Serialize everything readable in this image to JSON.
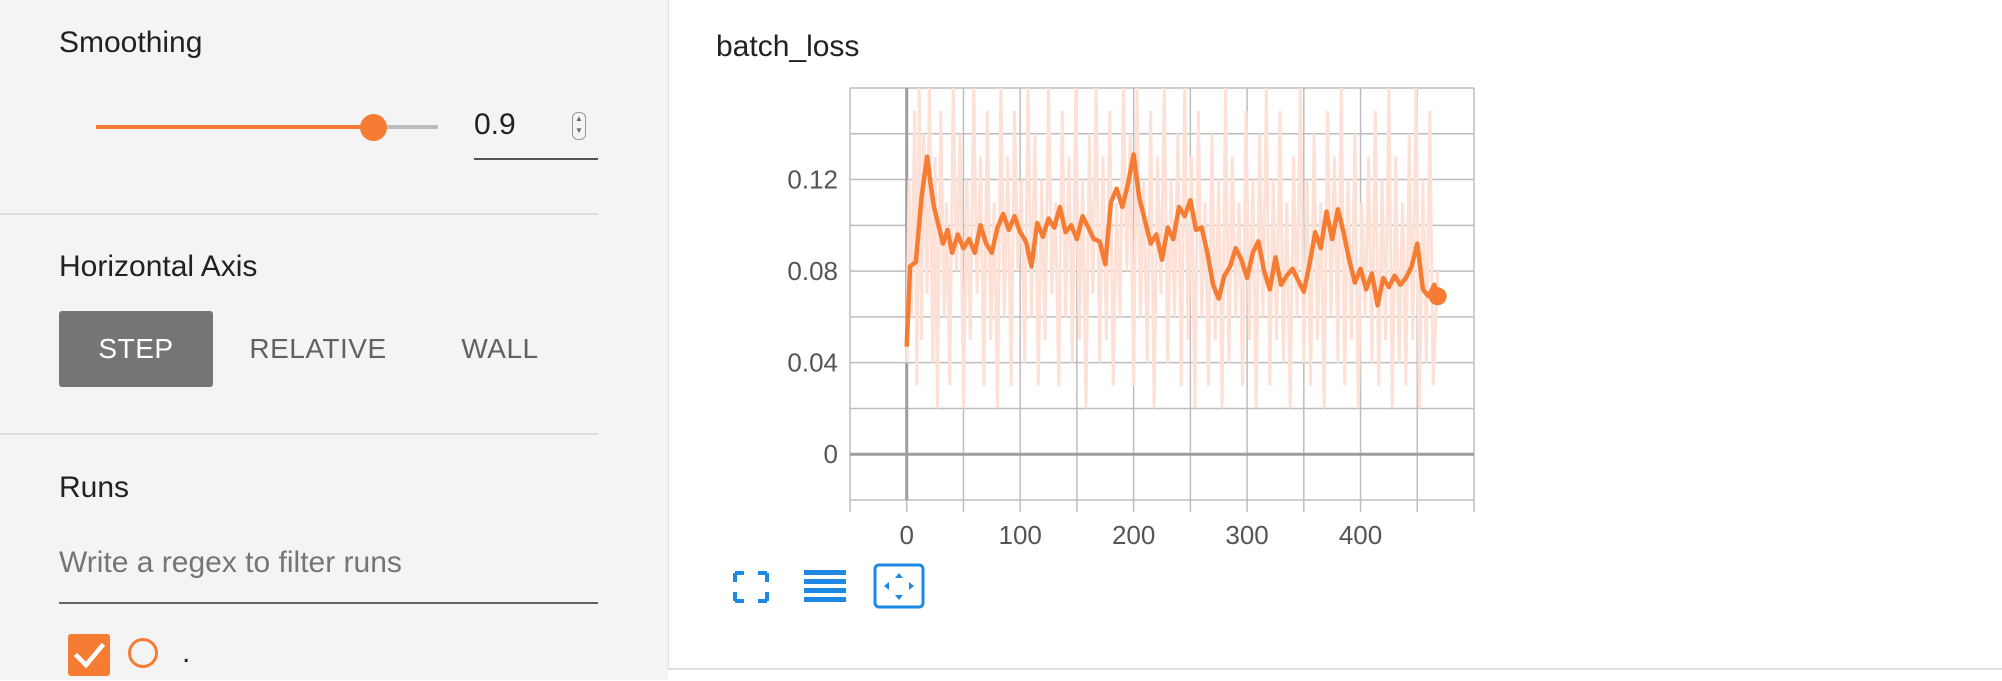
{
  "sidebar": {
    "smoothing": {
      "title": "Smoothing",
      "value": "0.9",
      "level": 0.9
    },
    "horizontal_axis": {
      "title": "Horizontal Axis",
      "options": [
        "STEP",
        "RELATIVE",
        "WALL"
      ],
      "selected": "STEP"
    },
    "runs": {
      "title": "Runs",
      "filter_placeholder": "Write a regex to filter runs",
      "items": [
        {
          "name": ".",
          "checked": true,
          "color": "#f57c32"
        }
      ]
    }
  },
  "card": {
    "title": "batch_loss",
    "controls": [
      "expand-icon",
      "data-selection-icon",
      "fit-domain-icon"
    ]
  },
  "colors": {
    "accent": "#f57c32",
    "raw_line": "#fde0d6",
    "smoothed_line": "#f57c32",
    "icon_blue": "#1e88e5"
  },
  "chart_data": {
    "type": "line",
    "title": "",
    "xlabel": "",
    "ylabel": "",
    "x_ticks": [
      0,
      100,
      200,
      300,
      400
    ],
    "y_ticks": [
      0,
      0.04,
      0.08,
      0.12
    ],
    "xlim": [
      -50,
      500
    ],
    "ylim": [
      -0.02,
      0.16
    ],
    "grid": true,
    "series": [
      {
        "role": "smoothed",
        "x": [
          0,
          3,
          8,
          13,
          18,
          21,
          24,
          28,
          32,
          36,
          40,
          45,
          50,
          55,
          60,
          65,
          70,
          75,
          80,
          85,
          90,
          95,
          100,
          105,
          110,
          115,
          120,
          125,
          130,
          135,
          140,
          145,
          150,
          155,
          160,
          165,
          170,
          175,
          180,
          185,
          190,
          195,
          200,
          205,
          210,
          215,
          220,
          225,
          230,
          235,
          240,
          245,
          250,
          255,
          260,
          265,
          270,
          275,
          280,
          285,
          290,
          295,
          300,
          305,
          310,
          315,
          320,
          325,
          330,
          335,
          340,
          345,
          350,
          355,
          360,
          365,
          370,
          375,
          380,
          385,
          390,
          395,
          400,
          405,
          410,
          415,
          420,
          425,
          430,
          435,
          440,
          445,
          450,
          455,
          460,
          465,
          468
        ],
        "y": [
          0.047,
          0.082,
          0.084,
          0.112,
          0.13,
          0.118,
          0.108,
          0.1,
          0.092,
          0.098,
          0.088,
          0.096,
          0.09,
          0.094,
          0.088,
          0.1,
          0.092,
          0.088,
          0.099,
          0.105,
          0.098,
          0.104,
          0.097,
          0.093,
          0.082,
          0.101,
          0.095,
          0.103,
          0.099,
          0.108,
          0.097,
          0.1,
          0.094,
          0.104,
          0.099,
          0.094,
          0.093,
          0.083,
          0.11,
          0.116,
          0.108,
          0.118,
          0.131,
          0.112,
          0.102,
          0.092,
          0.096,
          0.085,
          0.099,
          0.094,
          0.108,
          0.104,
          0.111,
          0.098,
          0.099,
          0.088,
          0.074,
          0.068,
          0.078,
          0.082,
          0.09,
          0.085,
          0.077,
          0.088,
          0.093,
          0.08,
          0.072,
          0.086,
          0.074,
          0.078,
          0.081,
          0.076,
          0.071,
          0.083,
          0.097,
          0.09,
          0.106,
          0.094,
          0.107,
          0.097,
          0.085,
          0.075,
          0.081,
          0.072,
          0.079,
          0.065,
          0.077,
          0.073,
          0.078,
          0.074,
          0.077,
          0.082,
          0.092,
          0.072,
          0.069,
          0.074,
          0.069
        ]
      },
      {
        "role": "raw",
        "x": [
          0,
          2,
          4,
          7,
          9,
          11,
          13,
          15,
          18,
          20,
          23,
          25,
          27,
          30,
          33,
          35,
          38,
          41,
          44,
          47,
          50,
          53,
          56,
          59,
          62,
          65,
          68,
          71,
          74,
          77,
          80,
          83,
          86,
          89,
          92,
          95,
          98,
          101,
          104,
          107,
          110,
          113,
          116,
          119,
          122,
          125,
          128,
          131,
          134,
          137,
          140,
          143,
          146,
          149,
          152,
          155,
          158,
          161,
          164,
          167,
          170,
          173,
          176,
          179,
          182,
          185,
          188,
          191,
          194,
          197,
          200,
          203,
          206,
          209,
          212,
          215,
          218,
          221,
          224,
          227,
          230,
          233,
          236,
          239,
          242,
          245,
          248,
          251,
          254,
          257,
          260,
          263,
          266,
          269,
          272,
          275,
          278,
          281,
          284,
          287,
          290,
          293,
          296,
          299,
          302,
          305,
          308,
          311,
          314,
          317,
          320,
          323,
          326,
          329,
          332,
          335,
          338,
          341,
          344,
          347,
          350,
          353,
          356,
          359,
          362,
          365,
          368,
          371,
          374,
          377,
          380,
          383,
          386,
          389,
          392,
          395,
          398,
          401,
          404,
          407,
          410,
          413,
          416,
          419,
          422,
          425,
          428,
          431,
          434,
          437,
          440,
          443,
          446,
          449,
          452,
          455,
          458,
          461,
          464,
          468
        ],
        "y": [
          0.04,
          0.12,
          0.06,
          0.15,
          0.03,
          0.16,
          0.05,
          0.14,
          0.07,
          0.16,
          0.04,
          0.13,
          0.02,
          0.15,
          0.06,
          0.11,
          0.03,
          0.16,
          0.08,
          0.14,
          0.02,
          0.12,
          0.05,
          0.16,
          0.07,
          0.13,
          0.03,
          0.15,
          0.05,
          0.11,
          0.02,
          0.16,
          0.06,
          0.13,
          0.03,
          0.15,
          0.08,
          0.12,
          0.04,
          0.16,
          0.06,
          0.14,
          0.03,
          0.12,
          0.05,
          0.16,
          0.07,
          0.11,
          0.03,
          0.15,
          0.06,
          0.13,
          0.04,
          0.16,
          0.05,
          0.12,
          0.02,
          0.14,
          0.07,
          0.16,
          0.04,
          0.13,
          0.05,
          0.15,
          0.03,
          0.11,
          0.06,
          0.16,
          0.08,
          0.14,
          0.03,
          0.16,
          0.06,
          0.12,
          0.04,
          0.15,
          0.02,
          0.13,
          0.07,
          0.16,
          0.04,
          0.12,
          0.06,
          0.14,
          0.03,
          0.16,
          0.05,
          0.13,
          0.02,
          0.15,
          0.06,
          0.11,
          0.03,
          0.14,
          0.05,
          0.12,
          0.02,
          0.16,
          0.04,
          0.13,
          0.06,
          0.11,
          0.03,
          0.15,
          0.05,
          0.12,
          0.02,
          0.14,
          0.06,
          0.16,
          0.03,
          0.12,
          0.05,
          0.15,
          0.04,
          0.11,
          0.02,
          0.13,
          0.06,
          0.16,
          0.04,
          0.12,
          0.03,
          0.14,
          0.05,
          0.11,
          0.02,
          0.15,
          0.06,
          0.13,
          0.04,
          0.16,
          0.03,
          0.12,
          0.05,
          0.14,
          0.02,
          0.11,
          0.06,
          0.13,
          0.04,
          0.15,
          0.03,
          0.12,
          0.05,
          0.16,
          0.02,
          0.13,
          0.04,
          0.11,
          0.03,
          0.14,
          0.05,
          0.16,
          0.02,
          0.12,
          0.04,
          0.15,
          0.03,
          0.08
        ]
      }
    ]
  }
}
